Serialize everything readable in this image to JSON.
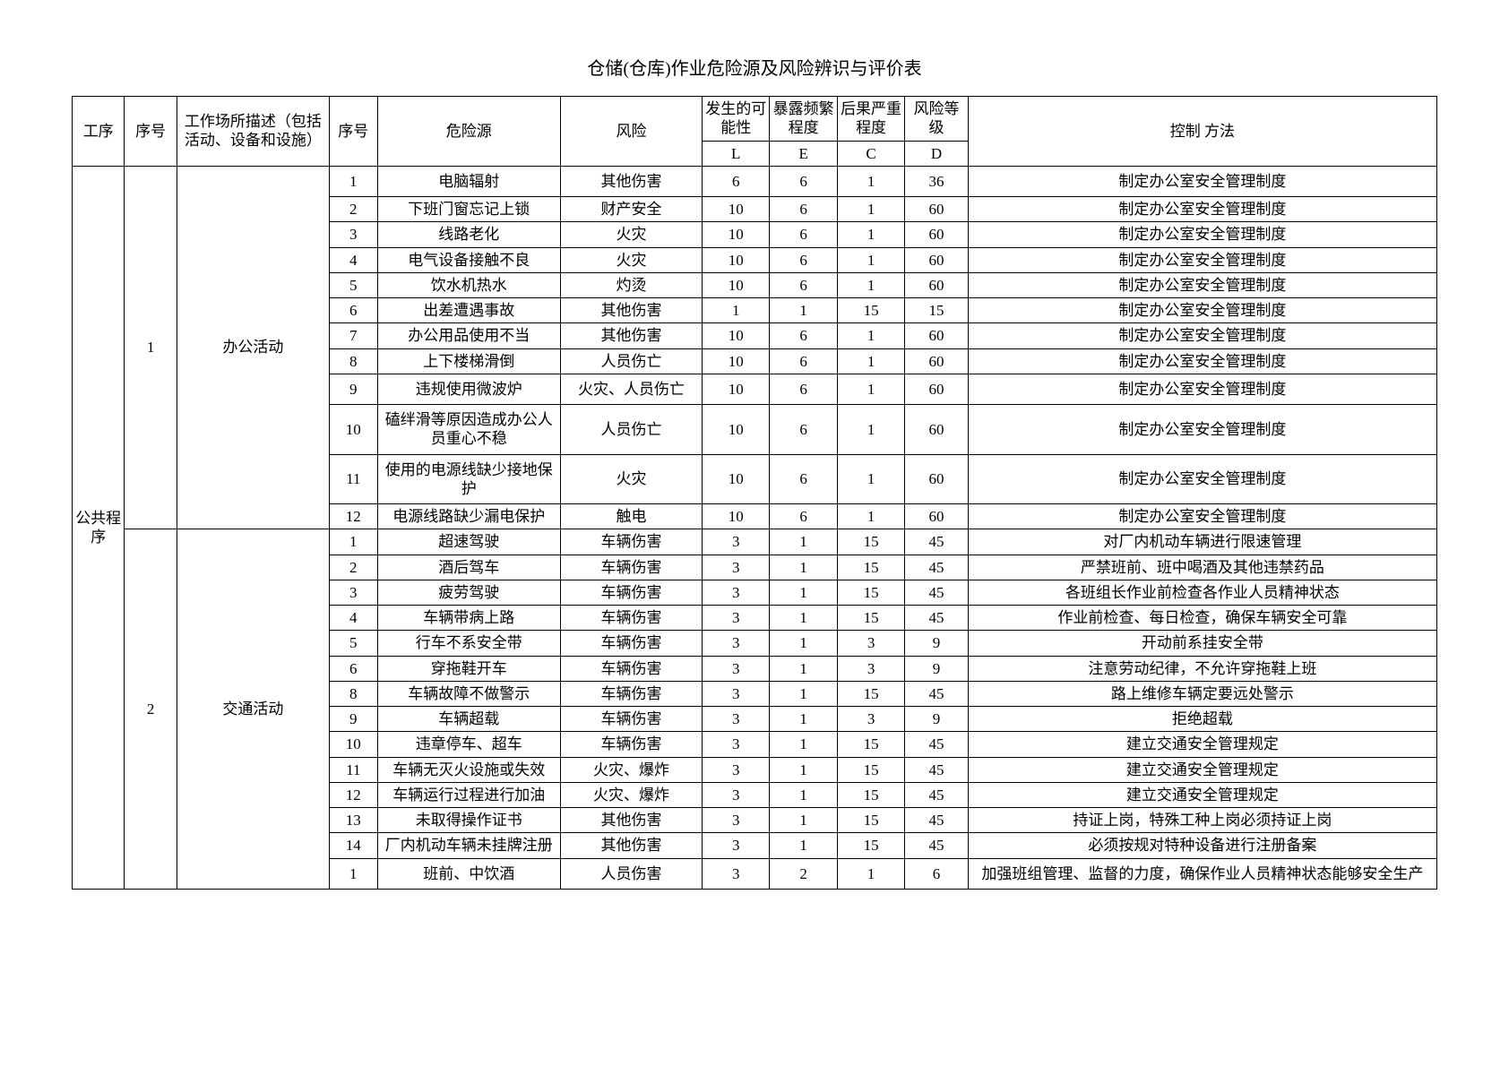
{
  "title": "仓储(仓库)作业危险源及风险辨识与评价表",
  "headers": {
    "gx": "工序",
    "xh1": "序号",
    "desc": "工作场所描述（包括活动、设备和设施）",
    "xh2": "序号",
    "hazard": "危险源",
    "risk": "风险",
    "L_top": "发生的可能性",
    "E_top": "暴露频繁程度",
    "C_top": "后果严重程度",
    "D_top": "风险等级",
    "L": "L",
    "E": "E",
    "C": "C",
    "D": "D",
    "ctl": "控制  方法"
  },
  "group": {
    "gx": "公共程序",
    "sec1": {
      "xh": "1",
      "desc": "办公活动"
    },
    "sec2": {
      "xh": "2",
      "desc": "交通活动"
    }
  },
  "rows1": [
    {
      "n": "1",
      "haz": "电脑辐射",
      "risk": "其他伤害",
      "L": "6",
      "E": "6",
      "C": "1",
      "D": "36",
      "ctl": "制定办公室安全管理制度"
    },
    {
      "n": "2",
      "haz": "下班门窗忘记上锁",
      "risk": "财产安全",
      "L": "10",
      "E": "6",
      "C": "1",
      "D": "60",
      "ctl": "制定办公室安全管理制度"
    },
    {
      "n": "3",
      "haz": "线路老化",
      "risk": "火灾",
      "L": "10",
      "E": "6",
      "C": "1",
      "D": "60",
      "ctl": "制定办公室安全管理制度"
    },
    {
      "n": "4",
      "haz": "电气设备接触不良",
      "risk": "火灾",
      "L": "10",
      "E": "6",
      "C": "1",
      "D": "60",
      "ctl": "制定办公室安全管理制度"
    },
    {
      "n": "5",
      "haz": "饮水机热水",
      "risk": "灼烫",
      "L": "10",
      "E": "6",
      "C": "1",
      "D": "60",
      "ctl": "制定办公室安全管理制度"
    },
    {
      "n": "6",
      "haz": "出差遭遇事故",
      "risk": "其他伤害",
      "L": "1",
      "E": "1",
      "C": "15",
      "D": "15",
      "ctl": "制定办公室安全管理制度"
    },
    {
      "n": "7",
      "haz": "办公用品使用不当",
      "risk": "其他伤害",
      "L": "10",
      "E": "6",
      "C": "1",
      "D": "60",
      "ctl": "制定办公室安全管理制度"
    },
    {
      "n": "8",
      "haz": "上下楼梯滑倒",
      "risk": "人员伤亡",
      "L": "10",
      "E": "6",
      "C": "1",
      "D": "60",
      "ctl": "制定办公室安全管理制度"
    },
    {
      "n": "9",
      "haz": "违规使用微波炉",
      "risk": "火灾、人员伤亡",
      "L": "10",
      "E": "6",
      "C": "1",
      "D": "60",
      "ctl": "制定办公室安全管理制度"
    },
    {
      "n": "10",
      "haz": "磕绊滑等原因造成办公人员重心不稳",
      "risk": "人员伤亡",
      "L": "10",
      "E": "6",
      "C": "1",
      "D": "60",
      "ctl": "制定办公室安全管理制度"
    },
    {
      "n": "11",
      "haz": "使用的电源线缺少接地保护",
      "risk": "火灾",
      "L": "10",
      "E": "6",
      "C": "1",
      "D": "60",
      "ctl": "制定办公室安全管理制度"
    },
    {
      "n": "12",
      "haz": "电源线路缺少漏电保护",
      "risk": "触电",
      "L": "10",
      "E": "6",
      "C": "1",
      "D": "60",
      "ctl": "制定办公室安全管理制度"
    }
  ],
  "rows2": [
    {
      "n": "1",
      "haz": "超速驾驶",
      "risk": "车辆伤害",
      "L": "3",
      "E": "1",
      "C": "15",
      "D": "45",
      "ctl": "对厂内机动车辆进行限速管理"
    },
    {
      "n": "2",
      "haz": "酒后驾车",
      "risk": "车辆伤害",
      "L": "3",
      "E": "1",
      "C": "15",
      "D": "45",
      "ctl": "严禁班前、班中喝酒及其他违禁药品"
    },
    {
      "n": "3",
      "haz": "疲劳驾驶",
      "risk": "车辆伤害",
      "L": "3",
      "E": "1",
      "C": "15",
      "D": "45",
      "ctl": "各班组长作业前检查各作业人员精神状态"
    },
    {
      "n": "4",
      "haz": "车辆带病上路",
      "risk": "车辆伤害",
      "L": "3",
      "E": "1",
      "C": "15",
      "D": "45",
      "ctl": "作业前检查、每日检查，确保车辆安全可靠"
    },
    {
      "n": "5",
      "haz": "行车不系安全带",
      "risk": "车辆伤害",
      "L": "3",
      "E": "1",
      "C": "3",
      "D": "9",
      "ctl": "开动前系挂安全带"
    },
    {
      "n": "6",
      "haz": "穿拖鞋开车",
      "risk": "车辆伤害",
      "L": "3",
      "E": "1",
      "C": "3",
      "D": "9",
      "ctl": "注意劳动纪律，不允许穿拖鞋上班"
    },
    {
      "n": "8",
      "haz": "车辆故障不做警示",
      "risk": "车辆伤害",
      "L": "3",
      "E": "1",
      "C": "15",
      "D": "45",
      "ctl": "路上维修车辆定要远处警示"
    },
    {
      "n": "9",
      "haz": "车辆超载",
      "risk": "车辆伤害",
      "L": "3",
      "E": "1",
      "C": "3",
      "D": "9",
      "ctl": "拒绝超载"
    },
    {
      "n": "10",
      "haz": "违章停车、超车",
      "risk": "车辆伤害",
      "L": "3",
      "E": "1",
      "C": "15",
      "D": "45",
      "ctl": "建立交通安全管理规定"
    },
    {
      "n": "11",
      "haz": "车辆无灭火设施或失效",
      "risk": "火灾、爆炸",
      "L": "3",
      "E": "1",
      "C": "15",
      "D": "45",
      "ctl": "建立交通安全管理规定"
    },
    {
      "n": "12",
      "haz": "车辆运行过程进行加油",
      "risk": "火灾、爆炸",
      "L": "3",
      "E": "1",
      "C": "15",
      "D": "45",
      "ctl": "建立交通安全管理规定"
    },
    {
      "n": "13",
      "haz": "未取得操作证书",
      "risk": "其他伤害",
      "L": "3",
      "E": "1",
      "C": "15",
      "D": "45",
      "ctl": "持证上岗，特殊工种上岗必须持证上岗"
    },
    {
      "n": "14",
      "haz": "厂内机动车辆未挂牌注册",
      "risk": "其他伤害",
      "L": "3",
      "E": "1",
      "C": "15",
      "D": "45",
      "ctl": "必须按规对特种设备进行注册备案"
    }
  ],
  "tail": {
    "n": "1",
    "haz": "班前、中饮酒",
    "risk": "人员伤害",
    "L": "3",
    "E": "2",
    "C": "1",
    "D": "6",
    "ctl": "加强班组管理、监督的力度，确保作业人员精神状态能够安全生产"
  }
}
